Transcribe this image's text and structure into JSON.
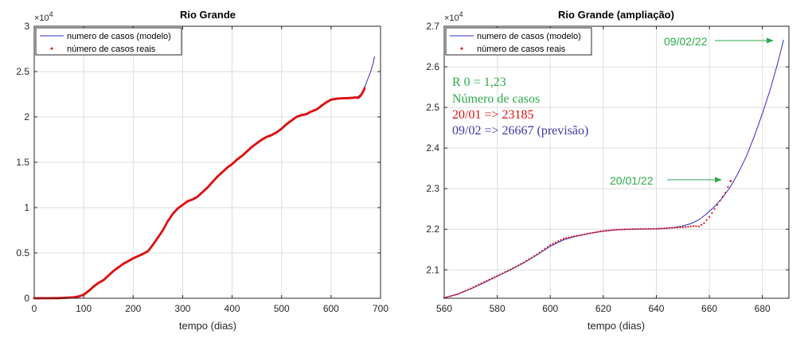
{
  "colors": {
    "model": "#2b2bcc",
    "real": "#dd1111",
    "green": "#2aaa4a",
    "red": "#dd1111",
    "blue": "#3a3aaa"
  },
  "chart_data": [
    {
      "type": "line",
      "title": "Rio Grande",
      "xlabel": "tempo (dias)",
      "ylabel": "",
      "y_exponent": "×10",
      "y_exponent_power": "4",
      "xlim": [
        0,
        700
      ],
      "ylim": [
        0,
        30000
      ],
      "xticks": [
        0,
        100,
        200,
        300,
        400,
        500,
        600,
        700
      ],
      "xtick_labels": [
        "0",
        "100",
        "200",
        "300",
        "400",
        "500",
        "600",
        "700"
      ],
      "yticks": [
        0,
        5000,
        10000,
        15000,
        20000,
        25000,
        30000
      ],
      "ytick_labels": [
        "0",
        "0.5",
        "1",
        "1.5",
        "2",
        "2.5",
        "3"
      ],
      "grid": true,
      "legend_position": "top-left",
      "series": [
        {
          "name": "numero de casos (modelo)",
          "style": "line",
          "x": [
            0,
            50,
            80,
            90,
            100,
            110,
            120,
            130,
            140,
            150,
            160,
            170,
            180,
            190,
            200,
            210,
            220,
            230,
            240,
            250,
            260,
            270,
            280,
            290,
            300,
            310,
            320,
            330,
            340,
            350,
            360,
            370,
            380,
            390,
            400,
            410,
            420,
            430,
            440,
            450,
            460,
            470,
            480,
            490,
            500,
            510,
            520,
            530,
            540,
            550,
            560,
            570,
            580,
            590,
            600,
            610,
            620,
            630,
            640,
            650,
            655,
            660,
            665,
            670,
            675,
            680,
            685,
            688
          ],
          "y": [
            0,
            20,
            100,
            200,
            400,
            800,
            1300,
            1700,
            2000,
            2500,
            3000,
            3400,
            3800,
            4100,
            4400,
            4650,
            4900,
            5200,
            5900,
            6700,
            7500,
            8500,
            9300,
            9900,
            10300,
            10700,
            10900,
            11200,
            11700,
            12200,
            12800,
            13400,
            13900,
            14400,
            14800,
            15300,
            15700,
            16200,
            16700,
            17100,
            17500,
            17800,
            18000,
            18300,
            18700,
            19200,
            19600,
            20000,
            20200,
            20300,
            20600,
            20800,
            21200,
            21600,
            21900,
            22000,
            22050,
            22070,
            22090,
            22150,
            22250,
            22500,
            23000,
            23600,
            24300,
            25000,
            25900,
            26667
          ]
        },
        {
          "name": "número de casos reais",
          "style": "markers",
          "x": [
            0,
            50,
            80,
            90,
            100,
            110,
            120,
            130,
            140,
            150,
            160,
            170,
            180,
            190,
            200,
            210,
            220,
            230,
            240,
            250,
            260,
            270,
            280,
            290,
            300,
            310,
            320,
            330,
            340,
            350,
            360,
            370,
            380,
            390,
            400,
            410,
            420,
            430,
            440,
            450,
            460,
            470,
            480,
            490,
            500,
            510,
            520,
            530,
            540,
            550,
            560,
            570,
            580,
            590,
            600,
            610,
            620,
            630,
            640,
            650,
            655,
            660,
            665,
            668
          ],
          "y": [
            0,
            20,
            100,
            200,
            400,
            800,
            1300,
            1700,
            2000,
            2500,
            3000,
            3400,
            3800,
            4100,
            4400,
            4650,
            4900,
            5200,
            5900,
            6700,
            7500,
            8500,
            9300,
            9900,
            10300,
            10700,
            10900,
            11200,
            11700,
            12200,
            12800,
            13400,
            13900,
            14400,
            14800,
            15300,
            15700,
            16200,
            16700,
            17100,
            17500,
            17800,
            18000,
            18300,
            18700,
            19200,
            19600,
            20000,
            20200,
            20300,
            20600,
            20800,
            21200,
            21600,
            21900,
            22000,
            22050,
            22070,
            22090,
            22150,
            22100,
            22350,
            22800,
            23185
          ]
        }
      ]
    },
    {
      "type": "line",
      "title": "Rio Grande (ampliação)",
      "xlabel": "tempo (dias)",
      "ylabel": "",
      "y_exponent": "×10",
      "y_exponent_power": "4",
      "xlim": [
        560,
        690
      ],
      "ylim": [
        20300,
        27000
      ],
      "xticks": [
        560,
        580,
        600,
        620,
        640,
        660,
        680
      ],
      "xtick_labels": [
        "560",
        "580",
        "600",
        "620",
        "640",
        "660",
        "680"
      ],
      "yticks": [
        21000,
        22000,
        23000,
        24000,
        25000,
        26000,
        27000
      ],
      "ytick_labels": [
        "2.1",
        "2.2",
        "2.3",
        "2.4",
        "2.5",
        "2.6",
        "2.7"
      ],
      "grid": true,
      "legend_position": "top-left",
      "series": [
        {
          "name": "numero de casos (modelo)",
          "style": "line",
          "x": [
            560,
            565,
            570,
            575,
            580,
            585,
            590,
            595,
            600,
            605,
            610,
            615,
            620,
            625,
            630,
            635,
            640,
            645,
            650,
            653,
            656,
            659,
            662,
            665,
            668,
            671,
            674,
            677,
            680,
            683,
            686,
            688
          ],
          "y": [
            20310,
            20400,
            20530,
            20680,
            20840,
            21000,
            21170,
            21370,
            21580,
            21740,
            21830,
            21900,
            21950,
            21985,
            22000,
            22005,
            22010,
            22030,
            22080,
            22140,
            22230,
            22380,
            22560,
            22780,
            23050,
            23400,
            23800,
            24300,
            24850,
            25450,
            26150,
            26667
          ]
        },
        {
          "name": "número de casos reais",
          "style": "markers",
          "x": [
            560,
            565,
            570,
            575,
            580,
            585,
            590,
            595,
            600,
            605,
            610,
            615,
            620,
            625,
            630,
            635,
            640,
            645,
            650,
            652,
            654,
            656,
            658,
            660,
            662,
            664,
            666,
            668
          ],
          "y": [
            20310,
            20400,
            20540,
            20700,
            20850,
            21010,
            21180,
            21380,
            21610,
            21770,
            21840,
            21900,
            21960,
            21990,
            22000,
            22010,
            22010,
            22030,
            22050,
            22060,
            22080,
            22070,
            22150,
            22300,
            22500,
            22700,
            22900,
            23185
          ]
        }
      ],
      "annotations": {
        "r0": "R 0 = 1,23",
        "heading": "Número de casos",
        "line_real": "20/01 => 23185",
        "line_forecast": "09/02 => 26667 (previsão)"
      },
      "arrows": [
        {
          "label": "09/02/22",
          "x": 686,
          "y": 26650
        },
        {
          "label": "20/01/22",
          "x": 667,
          "y": 23200
        }
      ]
    }
  ]
}
